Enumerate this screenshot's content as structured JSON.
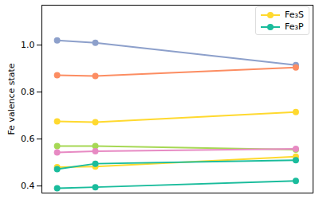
{
  "chart_data": {
    "type": "line",
    "y_label": "Fe valence state",
    "x": [
      0,
      1,
      6.25
    ],
    "xlim": [
      -0.4,
      6.7
    ],
    "ylim": [
      0.37,
      1.17
    ],
    "yticks": [
      0.4,
      0.6,
      0.8,
      {
        "value": 1,
        "label": "1.0"
      }
    ],
    "tick_labels": "y",
    "legend": "upper right",
    "series": [
      {
        "color": "#8da0cb",
        "marker": "circle",
        "values": [
          1.02,
          1.01,
          0.915
        ]
      },
      {
        "color": "#fc8d62",
        "marker": "circle",
        "values": [
          0.872,
          0.868,
          0.905
        ]
      },
      {
        "name": "Fe₃S",
        "color": "#ffd92f",
        "marker": "circle",
        "values": [
          0.675,
          0.672,
          0.715
        ]
      },
      {
        "color": "#a6d854",
        "marker": "circle",
        "values": [
          0.57,
          0.57,
          0.555
        ]
      },
      {
        "color": "#e78ac3",
        "marker": "circle",
        "values": [
          0.543,
          0.548,
          0.558
        ]
      },
      {
        "color": "#ffd92f",
        "marker": "circle",
        "values": [
          0.48,
          0.483,
          0.525
        ]
      },
      {
        "name": "Fe₃P",
        "color": "#1abc9c",
        "marker": "circle",
        "values": [
          0.472,
          0.495,
          0.51
        ]
      },
      {
        "color": "#1abc9c",
        "marker": "circle",
        "values": [
          0.39,
          0.395,
          0.422
        ]
      }
    ]
  }
}
